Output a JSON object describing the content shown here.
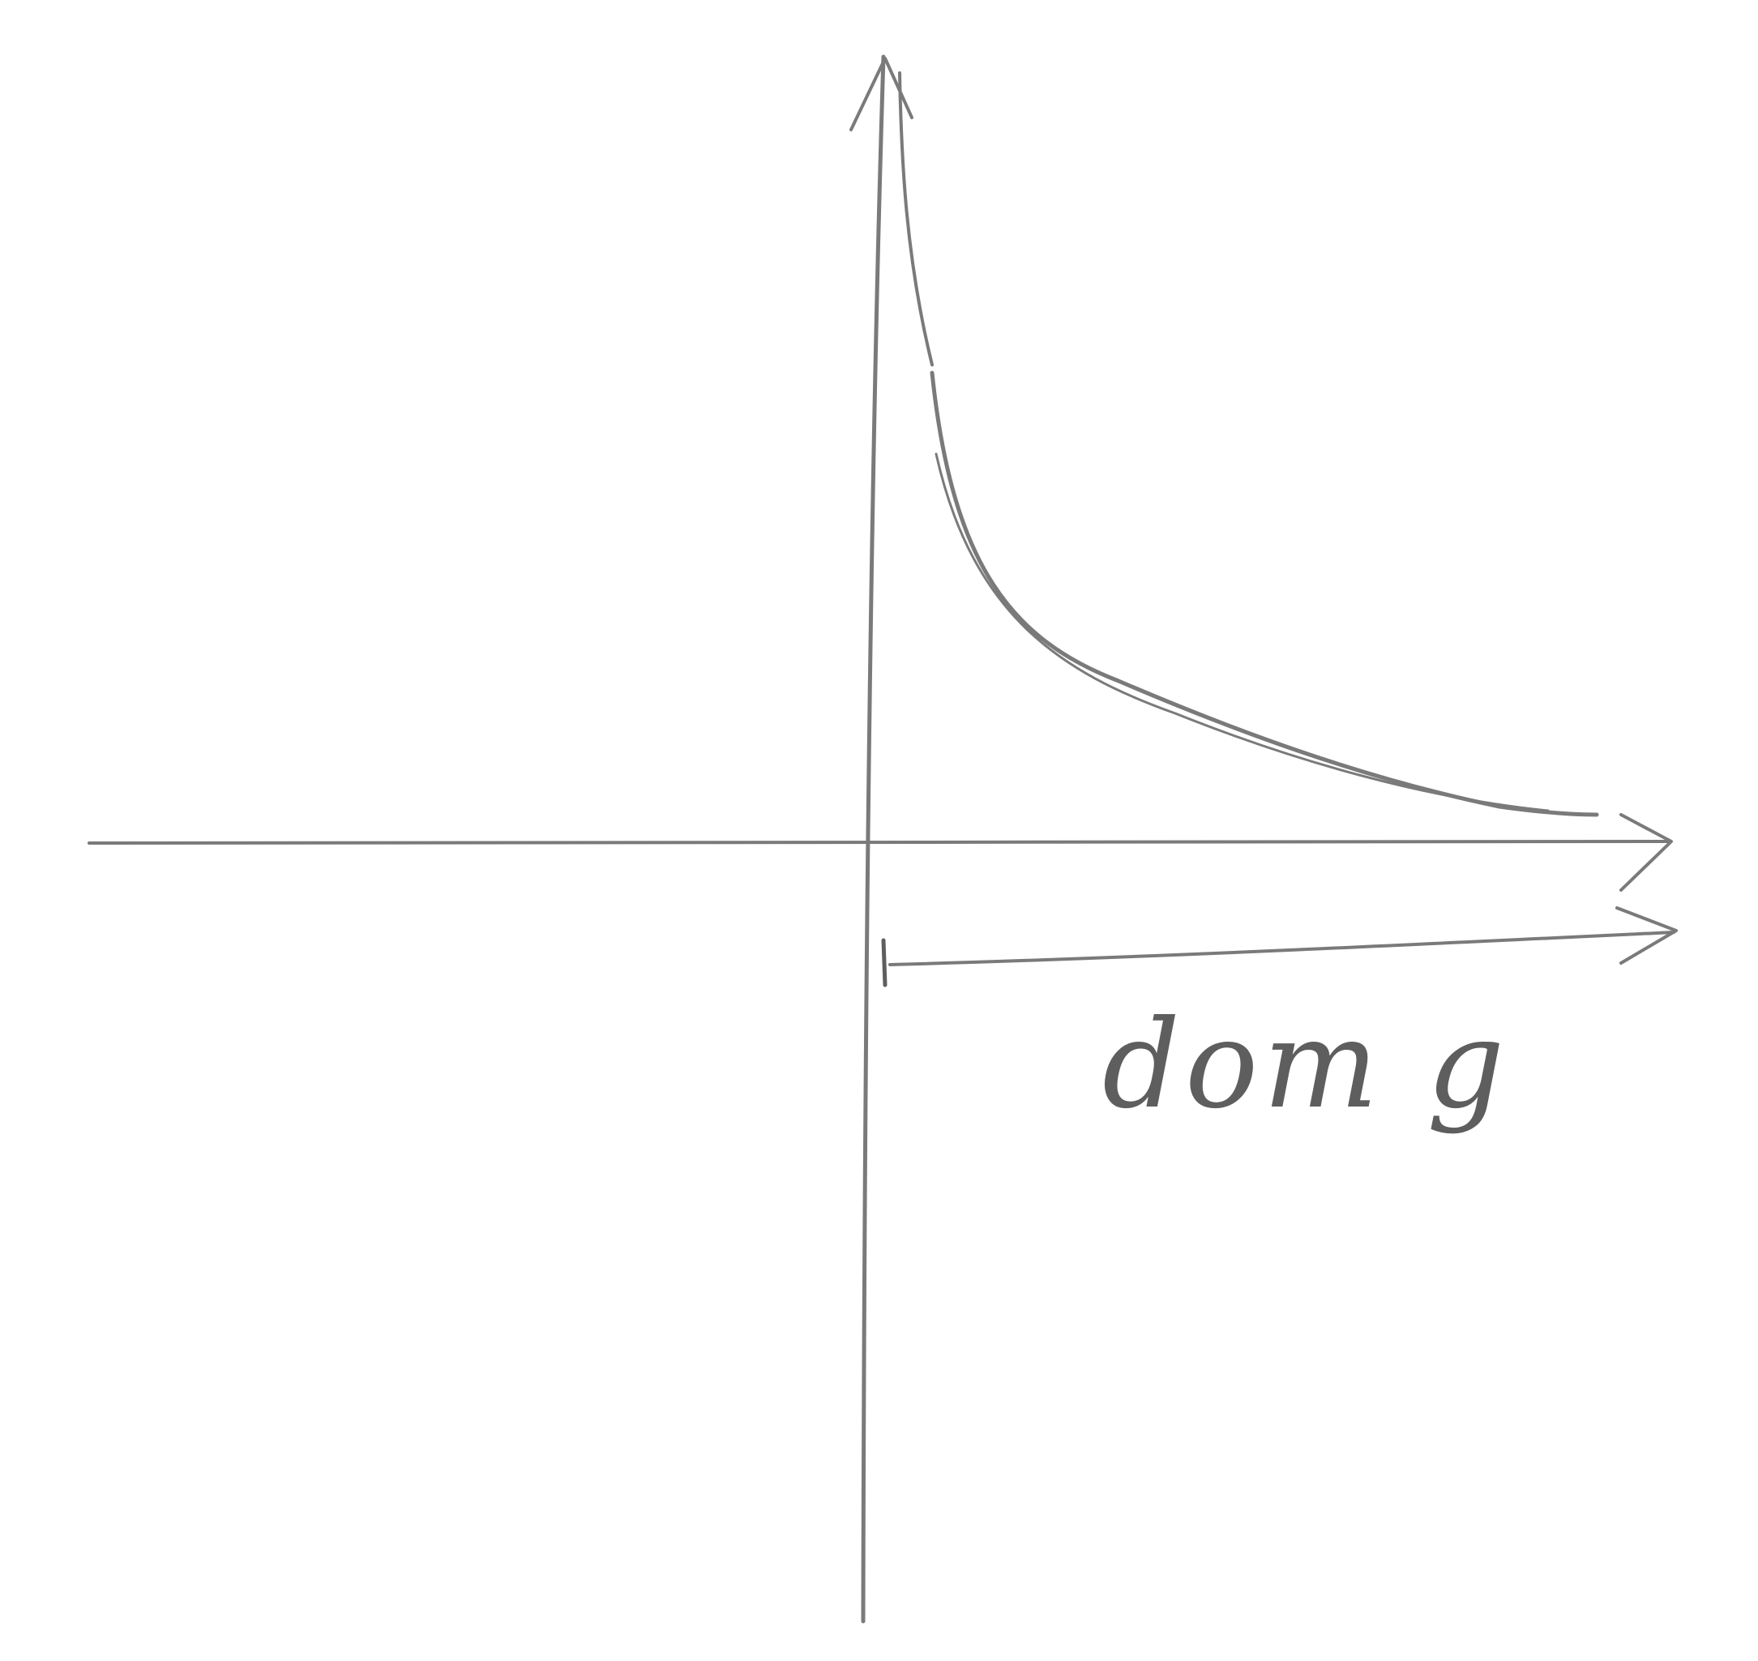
{
  "diagram": {
    "label": "dom g",
    "colors": {
      "paper": "#ffffff",
      "pencil": "#7a7a7a",
      "pencil_dark": "#5e5e5e"
    },
    "icons": {
      "y_axis_arrow": "arrow-up-icon",
      "x_axis_arrow": "arrow-right-icon",
      "domain_arrow": "arrow-right-icon"
    }
  }
}
